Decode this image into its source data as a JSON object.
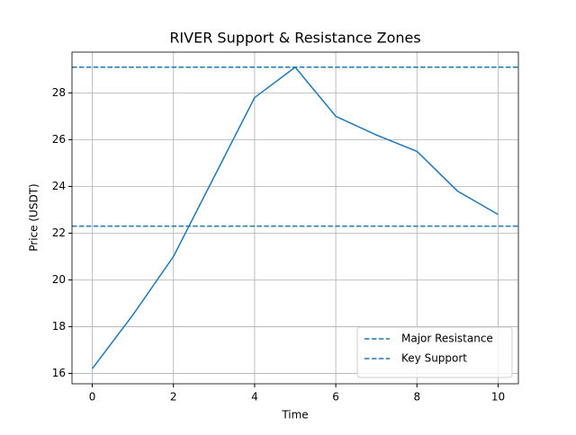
{
  "chart_data": {
    "type": "line",
    "title": "RIVER Support & Resistance Zones",
    "x_label": "Time",
    "y_label": "Price (USDT)",
    "x": [
      0,
      1,
      2,
      3,
      4,
      5,
      6,
      7,
      8,
      9,
      10
    ],
    "series": [
      {
        "color": "#1f77b4",
        "values": [
          16.2,
          18.5,
          21.0,
          24.4,
          27.8,
          29.1,
          27.0,
          26.2,
          25.5,
          23.8,
          22.8
        ]
      }
    ],
    "hlines": [
      {
        "name": "Major Resistance",
        "value": 29.1,
        "color": "#1f77b4",
        "dashed": true
      },
      {
        "name": "Key Support",
        "value": 22.3,
        "color": "#1f77b4",
        "dashed": true
      }
    ],
    "xlim": [
      -0.5,
      10.5
    ],
    "ylim": [
      15.555,
      29.745
    ],
    "xticks": [
      0,
      2,
      4,
      6,
      8,
      10
    ],
    "yticks": [
      16,
      18,
      20,
      22,
      24,
      26,
      28
    ],
    "grid": true,
    "legend": "lower right"
  }
}
